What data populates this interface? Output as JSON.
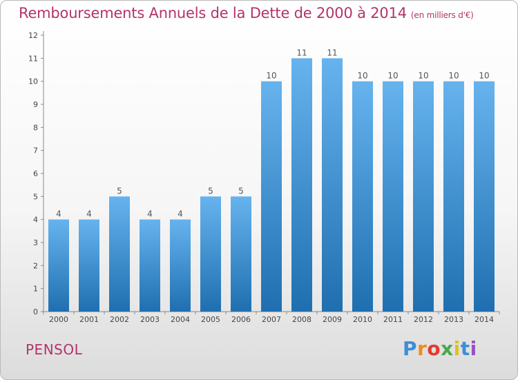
{
  "header": {
    "title": "Remboursements Annuels de la Dette de 2000 à 2014",
    "unit": "(en milliers d'€)"
  },
  "footer": {
    "commune": "PENSOL",
    "logo_text": "Proxiti"
  },
  "colors": {
    "title": "#b3336b",
    "bar_top": "#66b3ee",
    "bar_bottom": "#1f6fb0",
    "logo": [
      "#3b8fd6",
      "#f08a1c",
      "#e53a2f",
      "#4aa84a",
      "#e0c020",
      "#3b8fd6",
      "#9a4fc4"
    ]
  },
  "chart_data": {
    "type": "bar",
    "title": "Remboursements Annuels de la Dette de 2000 à 2014",
    "subtitle": "(en milliers d'€)",
    "categories": [
      "2000",
      "2001",
      "2002",
      "2003",
      "2004",
      "2005",
      "2006",
      "2007",
      "2008",
      "2009",
      "2010",
      "2011",
      "2012",
      "2013",
      "2014"
    ],
    "values": [
      4,
      4,
      5,
      4,
      4,
      5,
      5,
      10,
      11,
      11,
      10,
      10,
      10,
      10,
      10
    ],
    "value_labels": [
      "4",
      "4",
      "5",
      "4",
      "4",
      "5",
      "5",
      "10",
      "11",
      "11",
      "10",
      "10",
      "10",
      "10",
      "10"
    ],
    "ylim": [
      0,
      12
    ],
    "yticks": [
      "0",
      "1",
      "2",
      "3",
      "4",
      "5",
      "6",
      "7",
      "8",
      "9",
      "10",
      "11",
      "12"
    ],
    "grid": false,
    "legend": "none"
  }
}
